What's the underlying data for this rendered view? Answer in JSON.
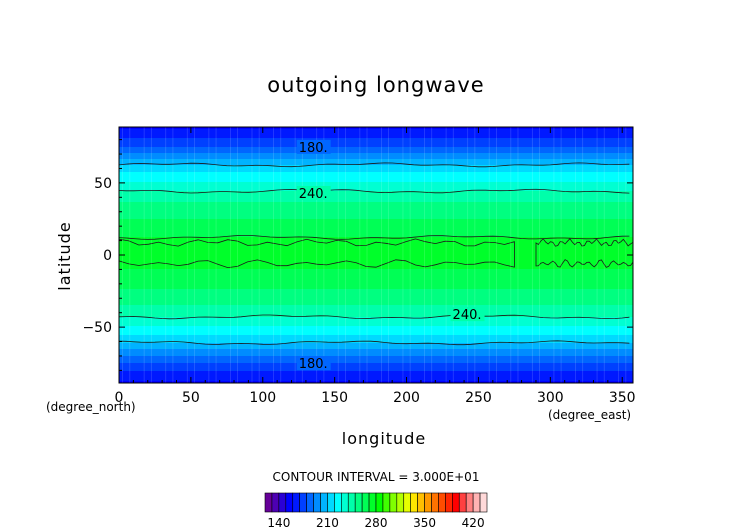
{
  "chart_data": {
    "type": "heatmap",
    "title": "outgoing longwave",
    "xlabel": "longitude",
    "ylabel": "latitude",
    "x_unit": "(degree_east)",
    "y_unit": "(degree_north)",
    "xlim": [
      0,
      357.5
    ],
    "ylim": [
      -88.75,
      88.75
    ],
    "x_ticks": [
      0,
      50,
      100,
      150,
      200,
      250,
      300,
      350
    ],
    "y_ticks": [
      -50,
      0,
      50
    ],
    "x_tick_labels": [
      "0",
      "50",
      "100",
      "150",
      "200",
      "250",
      "300",
      "350"
    ],
    "y_tick_labels": [
      "−50",
      "0",
      "50"
    ],
    "contour_interval_text": "CONTOUR INTERVAL = 3.000E+01",
    "contour_labels": [
      {
        "text": "180.",
        "lon": 125,
        "lat": 75
      },
      {
        "text": "240.",
        "lon": 125,
        "lat": 43
      },
      {
        "text": "240.",
        "lon": 232,
        "lat": -41
      },
      {
        "text": "180.",
        "lon": 125,
        "lat": -75
      }
    ],
    "zonal_profile": {
      "lat": [
        88.75,
        85,
        80,
        75,
        70,
        65,
        60,
        55,
        50,
        45,
        40,
        35,
        30,
        20,
        10,
        0,
        -10,
        -20,
        -30,
        -35,
        -40,
        -45,
        -50,
        -55,
        -60,
        -65,
        -70,
        -75,
        -80,
        -85,
        -88.75
      ],
      "value": [
        158,
        163,
        172,
        180,
        191,
        205,
        215,
        224,
        231,
        239,
        246,
        252,
        257,
        263,
        272,
        274,
        270,
        262,
        256,
        250,
        244,
        237,
        229,
        221,
        212,
        201,
        190,
        180,
        171,
        163,
        158
      ]
    },
    "colorbar": {
      "min": 120,
      "max": 440,
      "step": 10,
      "ticks": [
        140,
        210,
        280,
        350,
        420
      ],
      "tick_labels": [
        "140",
        "210",
        "280",
        "350",
        "420"
      ],
      "colors": [
        "#660099",
        "#4d00b3",
        "#2a00d5",
        "#0000ff",
        "#0019ff",
        "#0040ff",
        "#0066ff",
        "#008cff",
        "#00b3ff",
        "#00d9ff",
        "#00ffff",
        "#00ffd2",
        "#00ffaa",
        "#00ff80",
        "#00ff55",
        "#00ff2a",
        "#00ff00",
        "#40ff00",
        "#80ff00",
        "#b3ff00",
        "#e6ff00",
        "#ffe600",
        "#ffbf00",
        "#ff9900",
        "#ff7300",
        "#ff4d00",
        "#ff2600",
        "#ff0000",
        "#ff4040",
        "#ff8080",
        "#ffb3b3",
        "#ffd9d9"
      ]
    }
  }
}
